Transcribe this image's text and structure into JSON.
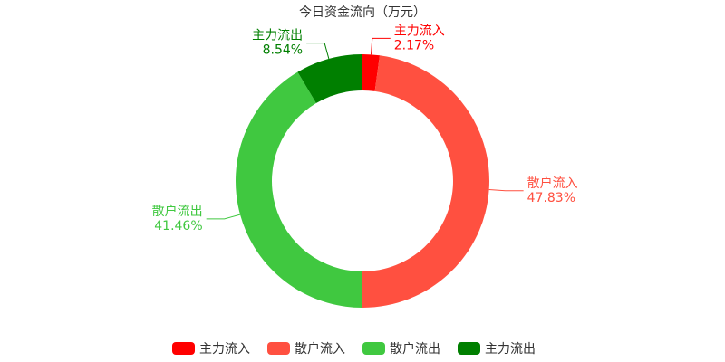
{
  "chart_data": {
    "type": "pie",
    "title": "今日资金流向（万元）",
    "categories": [
      "主力流入",
      "散户流入",
      "散户流出",
      "主力流出"
    ],
    "values": [
      2.17,
      47.83,
      41.46,
      8.54
    ],
    "value_labels": [
      "2.17%",
      "47.83%",
      "41.46%",
      "8.54%"
    ],
    "colors": [
      "#ff0000",
      "#ff5040",
      "#40c840",
      "#007f00"
    ],
    "donut": true
  }
}
